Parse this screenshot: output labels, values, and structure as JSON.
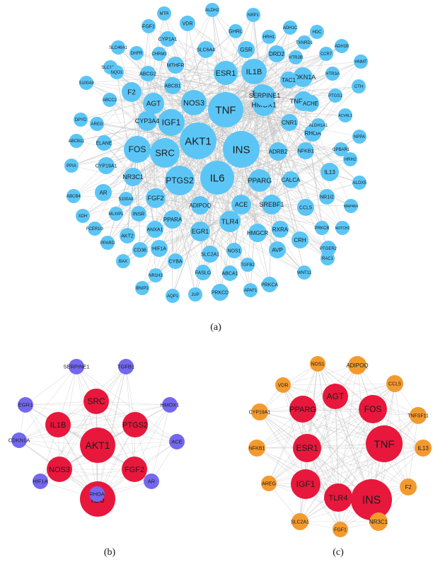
{
  "panels": [
    {
      "caption": "(a)",
      "nodes": [
        "AKT1",
        "INS",
        "TNF",
        "IL6",
        "SRC",
        "PTGS2",
        "IGF1",
        "FOS",
        "NOS3",
        "IL1B",
        "ESR1",
        "PPARG",
        "HMOX1",
        "AGT",
        "TGFB1",
        "F2",
        "CYP3A4",
        "SERPINE1",
        "TNFSF11",
        "TLR4",
        "EGR1",
        "ACE",
        "FGF2",
        "NR3C1",
        "SREBF1",
        "ADIPOQ",
        "PPARA",
        "CDKN1A",
        "CNR1",
        "ADRB2",
        "RHOA",
        "IL13",
        "CALCA",
        "HMGCR",
        "RXRA",
        "GSR",
        "DRD2",
        "TAC1",
        "ACHE",
        "CRH",
        "AVP",
        "SLC2A1",
        "NOS1",
        "HIF1A",
        "ANXA1",
        "INSR",
        "AR",
        "ELANE",
        "CYP19A1",
        "ABCB1",
        "MTHFR",
        "ABCG2",
        "SLC6A4",
        "CYP1A1",
        "VDR",
        "GHRL",
        "FGF1",
        "NRP1",
        "ALDH2",
        "MTR",
        "DHFR",
        "CHRM3",
        "SLC46A1",
        "SLC19A1",
        "NQO1",
        "S100A9",
        "ABCC2",
        "AREG",
        "DPYD",
        "ABCB11",
        "PPIA",
        "ABCB4",
        "XDH",
        "FCER1G",
        "PPARD",
        "AKT2",
        "CD36",
        "CYBA",
        "BAX",
        "NR1H3",
        "BNIP3",
        "AQP1",
        "JUP",
        "PRKCD",
        "APAF1",
        "PRKCA",
        "WNT11",
        "RAC1",
        "PTGER2",
        "NOTCH2",
        "PRKCB",
        "MAP4K4",
        "ALOX5",
        "HRH2",
        "NPPA",
        "ACVRL1",
        "GPBAR1",
        "PTGS1",
        "CTH",
        "HNMT",
        "ADH1B",
        "HDC",
        "ADH1C",
        "HRH1",
        "TXNRD1",
        "HTR2B",
        "CCR7",
        "HTR3A",
        "ALDH1A1",
        "NFKB1",
        "NR1I2",
        "CCL5",
        "TGFB2",
        "FASLG",
        "ABCA1",
        "MLXIPL",
        "S100A8"
      ]
    },
    {
      "caption": "(b)",
      "core": [
        "AKT1",
        "IL6",
        "SRC",
        "IL1B",
        "PTGS2",
        "NOS3",
        "FGF2"
      ],
      "outer": [
        "SERPINE1",
        "TGFB1",
        "HMOX1",
        "ACE",
        "AR",
        "RHOA",
        "HIF1A",
        "CDKN1A",
        "EGR1"
      ]
    },
    {
      "caption": "(c)",
      "core": [
        "AGT",
        "PPARG",
        "FOS",
        "ESR1",
        "TNF",
        "IGF1",
        "TLR4",
        "INS"
      ],
      "outer": [
        "NOS1",
        "ADIPOQ",
        "VDR",
        "CCL5",
        "CYP19A1",
        "TNFSF11",
        "NFKB1",
        "IL13",
        "AREG",
        "F2",
        "SLC2A1",
        "FGF1",
        "NR3C1"
      ]
    }
  ],
  "colors": {
    "panel_a_node": "#5bc6f6",
    "core_node": "#e8173c",
    "panel_b_outer": "#7468ef",
    "panel_c_outer": "#f39a2f",
    "edge": "#bfbfbf"
  }
}
